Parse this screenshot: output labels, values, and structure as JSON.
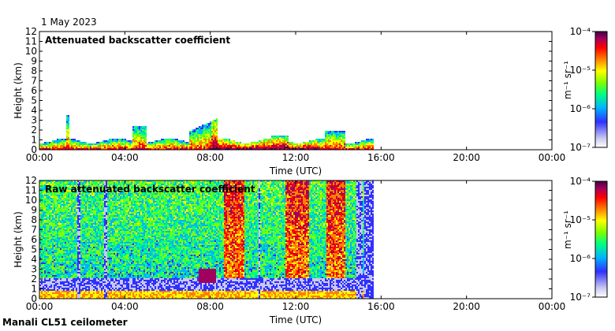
{
  "date": "1 May 2023",
  "footer": "Manali CL51 ceilometer",
  "colors": {
    "scale": [
      "#ffffff",
      "#c8c8f0",
      "#3030ff",
      "#00b4ff",
      "#00ff80",
      "#80ff00",
      "#ffff00",
      "#ff8000",
      "#ff0000",
      "#a00060",
      "#400040"
    ]
  },
  "chart_data": [
    {
      "type": "heatmap",
      "title": "Attenuated backscatter coefficient",
      "xlabel": "Time (UTC)",
      "ylabel": "Height (km)",
      "xlim": [
        "00:00",
        "24:00"
      ],
      "ylim": [
        0,
        12
      ],
      "x_ticks": [
        "00:00",
        "04:00",
        "08:00",
        "12:00",
        "16:00",
        "20:00",
        "00:00"
      ],
      "y_ticks": [
        "0",
        "1",
        "2",
        "3",
        "4",
        "5",
        "6",
        "7",
        "8",
        "9",
        "10",
        "11",
        "12"
      ],
      "data_end_hour": 15.6,
      "colorbar": {
        "label": "m⁻¹ sr⁻¹",
        "ticks": [
          "10⁻⁷",
          "10⁻⁶",
          "10⁻⁵",
          "10⁻⁴"
        ],
        "range": [
          1e-07,
          0.0001
        ]
      }
    },
    {
      "type": "heatmap",
      "title": "Raw attenuated backscatter coefficient",
      "xlabel": "Time (UTC)",
      "ylabel": "Height (km)",
      "xlim": [
        "00:00",
        "24:00"
      ],
      "ylim": [
        0,
        12
      ],
      "x_ticks": [
        "00:00",
        "04:00",
        "08:00",
        "12:00",
        "16:00",
        "20:00",
        "00:00"
      ],
      "y_ticks": [
        "0",
        "1",
        "2",
        "3",
        "4",
        "5",
        "6",
        "7",
        "8",
        "9",
        "10",
        "11",
        "12"
      ],
      "data_end_hour": 15.6,
      "colorbar": {
        "label": "m⁻¹ sr⁻¹",
        "ticks": [
          "10⁻⁷",
          "10⁻⁶",
          "10⁻⁵",
          "10⁻⁴"
        ],
        "range": [
          1e-07,
          0.0001
        ]
      }
    }
  ]
}
